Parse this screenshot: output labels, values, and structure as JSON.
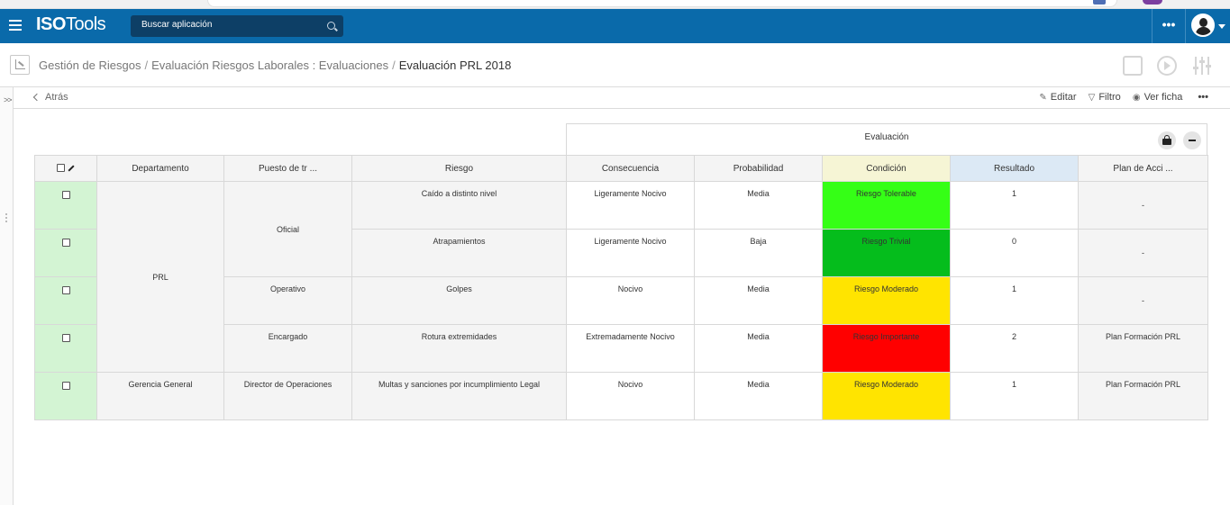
{
  "app": {
    "logo_bold": "ISO",
    "logo_rest": "Tools",
    "search_placeholder": "Buscar aplicación",
    "more_label": "•••"
  },
  "breadcrumb": {
    "items": [
      "Gestión de Riesgos",
      "Evaluación Riesgos Laborales : Evaluaciones"
    ],
    "current": "Evaluación PRL 2018",
    "separator": "/"
  },
  "actions": {
    "back": "Atrás",
    "edit": "Editar",
    "filter": "Filtro",
    "view": "Ver ficha",
    "more": "•••"
  },
  "colors": {
    "appbar": "#0a6aaa",
    "tolerable": "#35ff16",
    "trivial": "#05bd1c",
    "moderado": "#ffe400",
    "importante": "#ff0000"
  },
  "table": {
    "group_header": "Evaluación",
    "columns": [
      "Departamento",
      "Puesto de tr ...",
      "Riesgo",
      "Consecuencia",
      "Probabilidad",
      "Condición",
      "Resultado",
      "Plan de Acci ..."
    ],
    "rows": [
      {
        "riesgo": "Caído a distinto nivel",
        "consecuencia": "Ligeramente Nocivo",
        "probabilidad": "Media",
        "condicion": "Riesgo Tolerable",
        "resultado": "1",
        "plan": "-"
      },
      {
        "riesgo": "Atrapamientos",
        "consecuencia": "Ligeramente Nocivo",
        "probabilidad": "Baja",
        "condicion": "Riesgo Trivial",
        "resultado": "0",
        "plan": "-"
      },
      {
        "riesgo": "Golpes",
        "consecuencia": "Nocivo",
        "probabilidad": "Media",
        "condicion": "Riesgo Moderado",
        "resultado": "1",
        "plan": "-"
      },
      {
        "riesgo": "Rotura extremidades",
        "consecuencia": "Extremadamente Nocivo",
        "probabilidad": "Media",
        "condicion": "Riesgo Importante",
        "resultado": "2",
        "plan": "Plan Formación PRL"
      },
      {
        "riesgo": "Multas y sanciones por incumplimiento Legal",
        "consecuencia": "Nocivo",
        "probabilidad": "Media",
        "condicion": "Riesgo Moderado",
        "resultado": "1",
        "plan": "Plan Formación PRL"
      }
    ],
    "departamentos": [
      "PRL",
      "Gerencia General"
    ],
    "puestos": [
      "Oficial",
      "Operativo",
      "Encargado",
      "Director de Operaciones"
    ]
  }
}
